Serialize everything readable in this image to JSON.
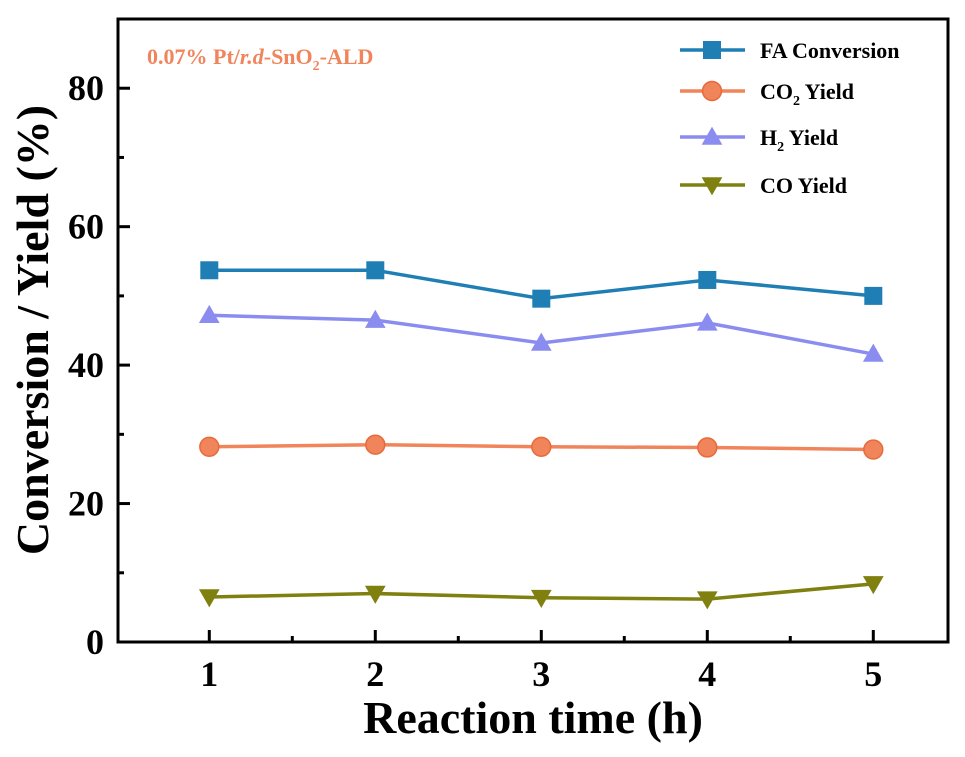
{
  "chart_data": {
    "type": "line",
    "ylabel": "Conversion / Yield (%)",
    "xlabel": "Reaction time (h)",
    "x": [
      1,
      2,
      3,
      4,
      5
    ],
    "xlim": [
      0.45,
      5.45
    ],
    "ylim": [
      0,
      90
    ],
    "xticks": [
      "1",
      "2",
      "3",
      "4",
      "5"
    ],
    "yticks": [
      "0",
      "20",
      "40",
      "60",
      "80"
    ],
    "ytick_values": [
      0,
      20,
      40,
      60,
      80
    ],
    "grid": false,
    "legend_position": "top-right",
    "annotation": {
      "prefix": "0.07% Pt/",
      "italic": "r.d",
      "mid": "-SnO",
      "sub": "2",
      "suffix": "-ALD",
      "color": "#F0845A"
    },
    "series": [
      {
        "name": "FA Conversion",
        "label_main": "FA Conversion",
        "label_sub": "",
        "label_tail": "",
        "marker": "square",
        "color": "#1F7FB5",
        "values": [
          53.7,
          53.7,
          49.6,
          52.3,
          50.0
        ]
      },
      {
        "name": "CO2 Yield",
        "label_main": "CO",
        "label_sub": "2",
        "label_tail": " Yield",
        "marker": "circle",
        "color": "#F0845A",
        "values": [
          28.2,
          28.5,
          28.2,
          28.1,
          27.8
        ]
      },
      {
        "name": "H2 Yield",
        "label_main": "H",
        "label_sub": "2",
        "label_tail": " Yield",
        "marker": "triangle-up",
        "color": "#8B8CF0",
        "values": [
          47.2,
          46.5,
          43.2,
          46.1,
          41.6
        ]
      },
      {
        "name": "CO Yield",
        "label_main": "CO Yield",
        "label_sub": "",
        "label_tail": "",
        "marker": "triangle-down",
        "color": "#7F800F",
        "values": [
          6.5,
          7.0,
          6.4,
          6.2,
          8.4
        ]
      }
    ]
  }
}
